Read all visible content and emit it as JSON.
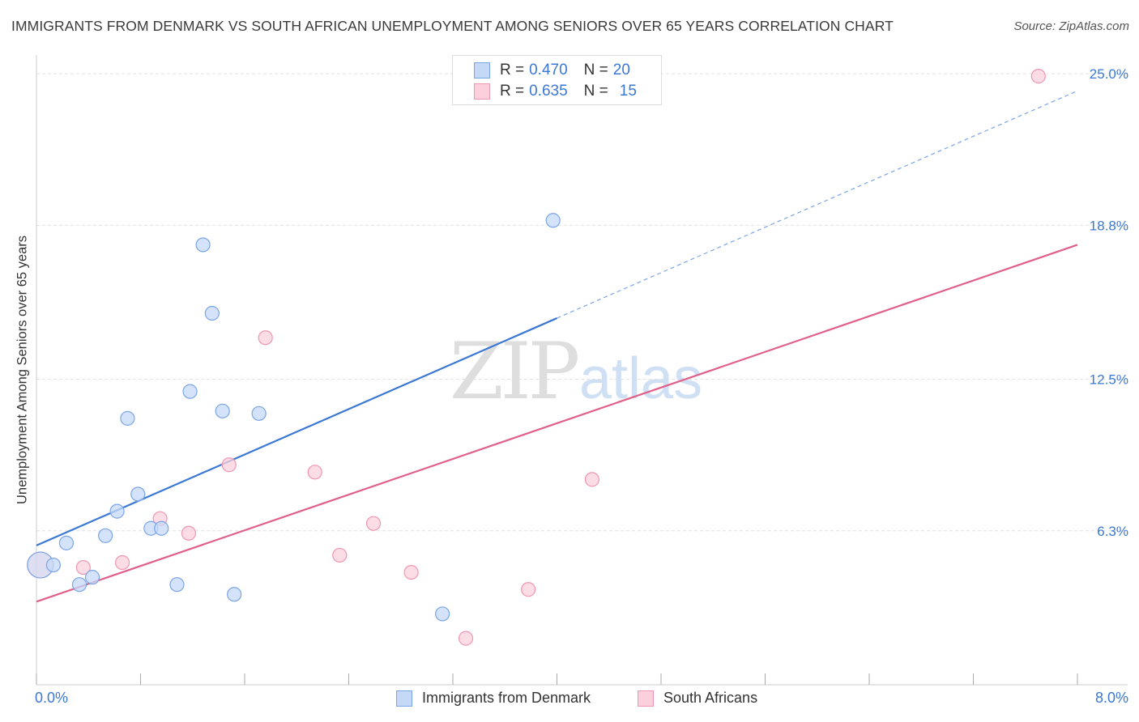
{
  "header": {
    "title": "IMMIGRANTS FROM DENMARK VS SOUTH AFRICAN UNEMPLOYMENT AMONG SENIORS OVER 65 YEARS CORRELATION CHART",
    "source": "Source: ZipAtlas.com"
  },
  "watermark": {
    "zip": "ZIP",
    "atlas": "atlas"
  },
  "legend": {
    "rows": [
      {
        "r_label": "R =",
        "r_value": "0.470",
        "n_label": "N =",
        "n_value": "20",
        "fill": "#c5d9f7",
        "stroke": "#7aa5e6"
      },
      {
        "r_label": "R =",
        "r_value": "0.635",
        "n_label": "N =",
        "n_value": "15",
        "fill": "#fbd0dc",
        "stroke": "#ee97b0"
      }
    ]
  },
  "bottom_legend": {
    "series1": "Immigrants from Denmark",
    "series2": "South Africans"
  },
  "chart_data": {
    "type": "scatter",
    "title": "IMMIGRANTS FROM DENMARK VS SOUTH AFRICAN UNEMPLOYMENT AMONG SENIORS OVER 65 YEARS CORRELATION CHART",
    "xlabel": "",
    "ylabel": "Unemployment Among Seniors over 65 years",
    "xlim": [
      0,
      8
    ],
    "ylim": [
      0,
      25.5
    ],
    "x_tick_labels": [
      "0.0%",
      "8.0%"
    ],
    "y_ticks": [
      6.3,
      12.5,
      18.8,
      25.0
    ],
    "y_tick_labels": [
      "6.3%",
      "12.5%",
      "18.8%",
      "25.0%"
    ],
    "grid": true,
    "series": [
      {
        "name": "Immigrants from Denmark",
        "color": "#3a78d4",
        "fill": "#c5d9f7",
        "stroke": "#7aa5e6",
        "x": [
          0.03,
          0.13,
          0.23,
          0.33,
          0.43,
          0.53,
          0.62,
          0.7,
          0.78,
          0.88,
          0.96,
          1.08,
          1.18,
          1.28,
          1.35,
          1.43,
          1.52,
          1.71,
          3.12,
          3.97
        ],
        "y": [
          4.9,
          4.9,
          5.8,
          4.1,
          4.4,
          6.1,
          7.1,
          10.9,
          7.8,
          6.4,
          6.4,
          4.1,
          12.0,
          18.0,
          15.2,
          11.2,
          3.7,
          11.1,
          2.9,
          19.0
        ],
        "trend": {
          "x0": 0.0,
          "y0": 5.7,
          "x1": 4.0,
          "y1": 15.0,
          "dashed_to_x": 8.0,
          "dashed_to_y": 24.3
        }
      },
      {
        "name": "South Africans",
        "color": "#e0608a",
        "fill": "#fbd0dc",
        "stroke": "#ee97b0",
        "x": [
          0.03,
          0.36,
          0.66,
          0.95,
          1.17,
          1.48,
          1.76,
          2.14,
          2.33,
          2.59,
          2.88,
          3.3,
          3.78,
          4.27,
          7.7
        ],
        "y": [
          4.9,
          4.8,
          5.0,
          6.8,
          6.2,
          9.0,
          14.2,
          8.7,
          5.3,
          6.6,
          4.6,
          1.9,
          3.9,
          8.4,
          24.9
        ],
        "trend": {
          "x0": 0.0,
          "y0": 3.4,
          "x1": 8.0,
          "y1": 18.0
        }
      }
    ]
  }
}
